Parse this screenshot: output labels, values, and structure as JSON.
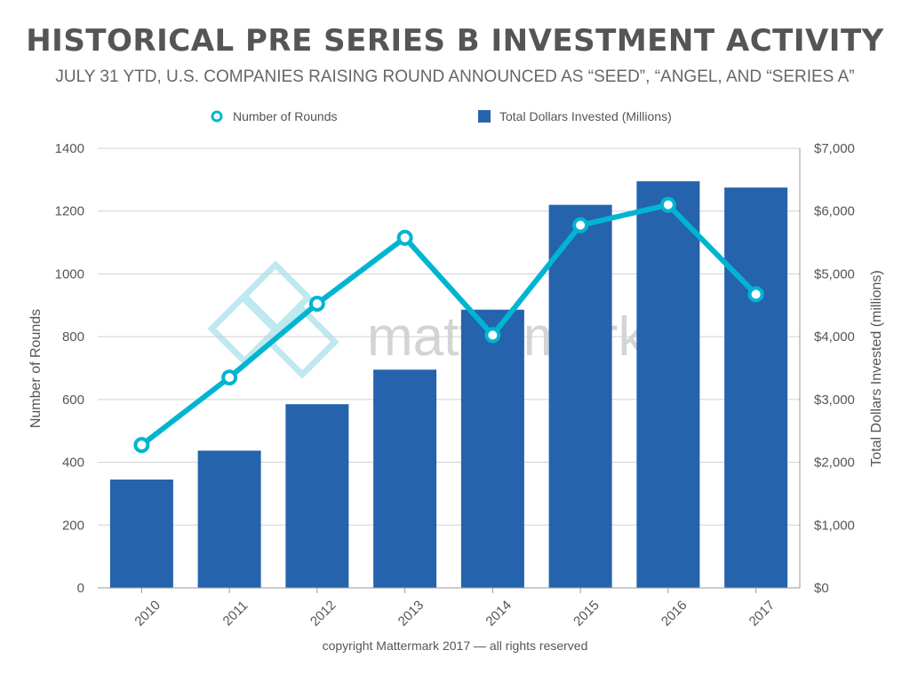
{
  "title": "HISTORICAL PRE SERIES B INVESTMENT ACTIVITY",
  "subtitle": "JULY 31 YTD, U.S. COMPANIES RAISING ROUND ANNOUNCED AS “SEED”, “ANGEL, AND “SERIES A”",
  "footer": "copyright Mattermark 2017 — all rights reserved",
  "watermark": "mattermark",
  "colors": {
    "bar": "#2563ad",
    "line": "#00b5d1",
    "grid": "#d0d0d0",
    "watermark": "#bfe9f0"
  },
  "chart_data": {
    "type": "bar+line",
    "categories": [
      "2010",
      "2011",
      "2012",
      "2013",
      "2014",
      "2015",
      "2016",
      "2017"
    ],
    "series": [
      {
        "name": "Total Dollars Invested (Millions)",
        "type": "bar",
        "axis": "right",
        "values": [
          1725,
          2185,
          2925,
          3475,
          4430,
          6100,
          6475,
          6375
        ]
      },
      {
        "name": "Number of Rounds",
        "type": "line",
        "axis": "left",
        "values": [
          455,
          670,
          905,
          1115,
          805,
          1155,
          1220,
          935
        ]
      }
    ],
    "ylabel": "Number of Rounds",
    "y2label": "Total Dollars Invested (millions)",
    "ylim": [
      0,
      1400
    ],
    "y2lim": [
      0,
      7000
    ],
    "yticks": [
      "0",
      "200",
      "400",
      "600",
      "800",
      "1000",
      "1200",
      "1400"
    ],
    "y2ticks": [
      "$0",
      "$1,000",
      "$2,000",
      "$3,000",
      "$4,000",
      "$5,000",
      "$6,000",
      "$7,000"
    ],
    "grid": true,
    "legend_position": "top"
  }
}
